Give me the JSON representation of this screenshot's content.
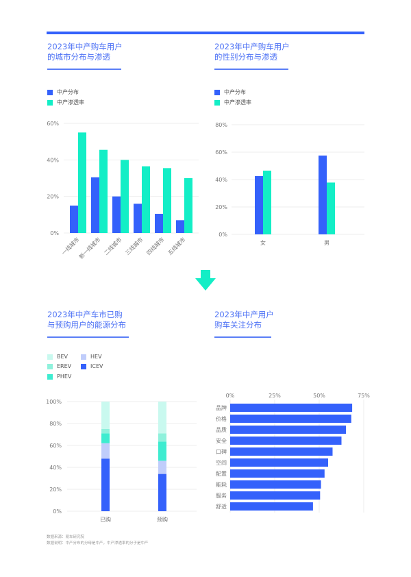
{
  "colors": {
    "blue": "#3461fb",
    "green": "#13eec6",
    "BEV": "#c9f9ef",
    "EREV": "#8ff1dc",
    "PHEV": "#3eecd0",
    "HEV": "#c0cdfb",
    "ICEV": "#3461fb"
  },
  "titles": {
    "city": [
      "2023年中产购车用户",
      "的城市分布与渗透"
    ],
    "gender": [
      "2023年中产购车用户",
      "的性别分布与渗透"
    ],
    "energy": [
      "2023年中产车市已购",
      "与预购用户的能源分布"
    ],
    "focus": [
      "2023年中产用户",
      "购车关注分布"
    ]
  },
  "legend": {
    "dist": "中产分布",
    "pen": "中产渗透率"
  },
  "footnote": {
    "source": "数据来源：易车研究院",
    "note": "数据说明：中产分布的分母是中产，中产渗透率的分子是中产"
  },
  "chart_data": [
    {
      "id": "city",
      "type": "bar",
      "categories": [
        "一线城市",
        "新一线城市",
        "二线城市",
        "三线城市",
        "四线城市",
        "五线城市"
      ],
      "series": [
        {
          "name": "中产分布",
          "values": [
            15,
            30.5,
            20,
            16,
            10.5,
            7
          ]
        },
        {
          "name": "中产渗透率",
          "values": [
            55,
            45.5,
            40,
            36.5,
            35.5,
            30
          ]
        }
      ],
      "ylim": [
        0,
        60
      ],
      "yticks": [
        "0%",
        "20%",
        "40%",
        "60%"
      ],
      "legend": "top-left",
      "grid": true
    },
    {
      "id": "gender",
      "type": "bar",
      "categories": [
        "女",
        "男"
      ],
      "series": [
        {
          "name": "中产分布",
          "values": [
            42.5,
            57.5
          ]
        },
        {
          "name": "中产渗透率",
          "values": [
            46.5,
            37.8
          ]
        }
      ],
      "ylim": [
        0,
        80
      ],
      "yticks": [
        "0%",
        "20%",
        "40%",
        "60%",
        "80%"
      ],
      "legend": "top-left",
      "grid": true
    },
    {
      "id": "energy",
      "type": "bar",
      "stacked": true,
      "categories": [
        "已购",
        "预购"
      ],
      "series": [
        {
          "name": "ICEV",
          "values": [
            48,
            34
          ]
        },
        {
          "name": "HEV",
          "values": [
            14,
            12
          ]
        },
        {
          "name": "PHEV",
          "values": [
            9,
            17.5
          ]
        },
        {
          "name": "EREV",
          "values": [
            4,
            7.5
          ]
        },
        {
          "name": "BEV",
          "values": [
            25,
            29
          ]
        }
      ],
      "legend_order": [
        "BEV",
        "HEV",
        "EREV",
        "ICEV",
        "PHEV"
      ],
      "ylim": [
        0,
        100
      ],
      "yticks": [
        "0%",
        "20%",
        "40%",
        "60%",
        "80%",
        "100%"
      ],
      "legend": "top-left",
      "grid": true
    },
    {
      "id": "focus",
      "type": "bar",
      "orientation": "horizontal",
      "categories": [
        "品牌",
        "价格",
        "品质",
        "安全",
        "口碑",
        "空间",
        "配置",
        "能耗",
        "服务",
        "舒适"
      ],
      "values": [
        68.5,
        68,
        65,
        62.5,
        57.5,
        55,
        53,
        51,
        50.5,
        46.5
      ],
      "xlim": [
        0,
        75
      ],
      "xticks": [
        "0%",
        "25%",
        "50%",
        "75%"
      ],
      "grid": true
    }
  ]
}
